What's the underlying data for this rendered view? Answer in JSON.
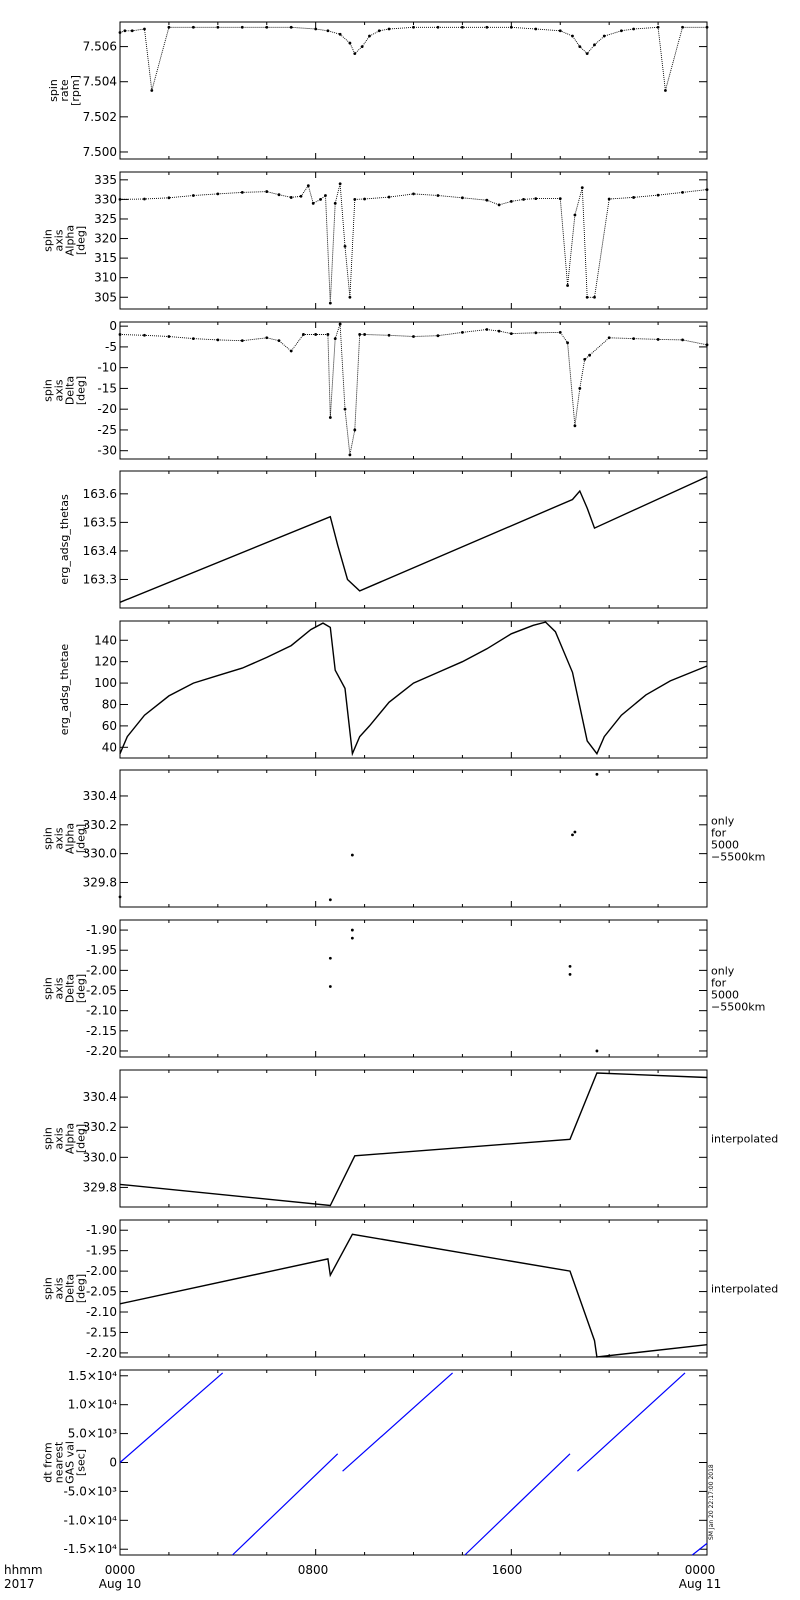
{
  "timeAxis": {
    "row1": [
      "hhmm",
      "0000",
      "0800",
      "1600",
      "0000"
    ],
    "row2": [
      "2017",
      "Aug 10",
      "Aug 11"
    ]
  },
  "sideNote": "SM Jan 20 22:17:00 2018",
  "chart_data": [
    {
      "type": "scatter",
      "ylabel": [
        "spin",
        "rate",
        "[rpm]"
      ],
      "right": [],
      "ylim": [
        7.4996,
        7.5074
      ],
      "yticks": [
        "7.500",
        "7.502",
        "7.504",
        "7.506"
      ],
      "ytickValues": [
        7.5,
        7.502,
        7.504,
        7.506
      ],
      "points": [
        [
          0,
          7.5068
        ],
        [
          0.2,
          7.5069
        ],
        [
          0.5,
          7.5069
        ],
        [
          1,
          7.507
        ],
        [
          1.3,
          7.5035
        ],
        [
          2,
          7.5071
        ],
        [
          3,
          7.5071
        ],
        [
          4,
          7.5071
        ],
        [
          5,
          7.5071
        ],
        [
          6,
          7.5071
        ],
        [
          7,
          7.5071
        ],
        [
          8,
          7.507
        ],
        [
          8.5,
          7.5069
        ],
        [
          9,
          7.5067
        ],
        [
          9.4,
          7.5062
        ],
        [
          9.6,
          7.5056
        ],
        [
          9.9,
          7.506
        ],
        [
          10.2,
          7.5066
        ],
        [
          10.6,
          7.5069
        ],
        [
          11,
          7.507
        ],
        [
          12,
          7.5071
        ],
        [
          13,
          7.5071
        ],
        [
          14,
          7.5071
        ],
        [
          15,
          7.5071
        ],
        [
          16,
          7.5071
        ],
        [
          17,
          7.507
        ],
        [
          18,
          7.5069
        ],
        [
          18.5,
          7.5066
        ],
        [
          18.8,
          7.506
        ],
        [
          19.1,
          7.5056
        ],
        [
          19.4,
          7.5061
        ],
        [
          19.8,
          7.5066
        ],
        [
          20.5,
          7.5069
        ],
        [
          21,
          7.507
        ],
        [
          22,
          7.5071
        ],
        [
          22.3,
          7.5035
        ],
        [
          23,
          7.5071
        ],
        [
          24,
          7.5071
        ]
      ]
    },
    {
      "type": "scatter",
      "ylabel": [
        "spin",
        "axis",
        "Alpha",
        "[deg]"
      ],
      "right": [],
      "ylim": [
        302,
        337
      ],
      "yticks": [
        "305",
        "310",
        "315",
        "320",
        "325",
        "330",
        "335"
      ],
      "ytickValues": [
        305,
        310,
        315,
        320,
        325,
        330,
        335
      ],
      "points": [
        [
          0,
          330
        ],
        [
          1,
          330.1
        ],
        [
          2,
          330.4
        ],
        [
          3,
          331.0
        ],
        [
          4,
          331.4
        ],
        [
          5,
          331.8
        ],
        [
          6,
          332.0
        ],
        [
          6.5,
          331.2
        ],
        [
          7,
          330.5
        ],
        [
          7.4,
          330.8
        ],
        [
          7.7,
          333.5
        ],
        [
          7.9,
          329.0
        ],
        [
          8.2,
          330
        ],
        [
          8.4,
          331
        ],
        [
          8.6,
          303.5
        ],
        [
          8.8,
          329
        ],
        [
          9.0,
          334
        ],
        [
          9.2,
          318
        ],
        [
          9.4,
          305
        ],
        [
          9.6,
          330
        ],
        [
          10,
          330.1
        ],
        [
          11,
          330.6
        ],
        [
          12,
          331.4
        ],
        [
          13,
          331.0
        ],
        [
          14,
          330.4
        ],
        [
          15,
          329.8
        ],
        [
          15.5,
          328.6
        ],
        [
          16,
          329.5
        ],
        [
          16.5,
          330.0
        ],
        [
          17,
          330.2
        ],
        [
          18,
          330.2
        ],
        [
          18.3,
          308
        ],
        [
          18.6,
          326
        ],
        [
          18.9,
          333
        ],
        [
          19.1,
          305
        ],
        [
          19.4,
          305
        ],
        [
          20,
          330.1
        ],
        [
          21,
          330.5
        ],
        [
          22,
          331.1
        ],
        [
          23,
          331.8
        ],
        [
          24,
          332.5
        ]
      ]
    },
    {
      "type": "scatter",
      "ylabel": [
        "spin",
        "axis",
        "Delta",
        "[deg]"
      ],
      "right": [],
      "ylim": [
        -32,
        1
      ],
      "yticks": [
        "0",
        "-5",
        "-10",
        "-15",
        "-20",
        "-25",
        "-30"
      ],
      "ytickValues": [
        0,
        -5,
        -10,
        -15,
        -20,
        -25,
        -30
      ],
      "points": [
        [
          0,
          -2
        ],
        [
          1,
          -2.2
        ],
        [
          2,
          -2.5
        ],
        [
          3,
          -3.0
        ],
        [
          4,
          -3.3
        ],
        [
          5,
          -3.5
        ],
        [
          6,
          -2.8
        ],
        [
          6.5,
          -3.5
        ],
        [
          7,
          -6
        ],
        [
          7.5,
          -2
        ],
        [
          8,
          -2
        ],
        [
          8.5,
          -2
        ],
        [
          8.6,
          -22
        ],
        [
          8.8,
          -3
        ],
        [
          9.0,
          0.5
        ],
        [
          9.2,
          -20
        ],
        [
          9.4,
          -31
        ],
        [
          9.6,
          -25
        ],
        [
          9.8,
          -2
        ],
        [
          10,
          -2
        ],
        [
          11,
          -2.2
        ],
        [
          12,
          -2.5
        ],
        [
          13,
          -2.3
        ],
        [
          14,
          -1.5
        ],
        [
          15,
          -0.8
        ],
        [
          15.5,
          -1.2
        ],
        [
          16,
          -1.8
        ],
        [
          17,
          -1.6
        ],
        [
          18,
          -1.5
        ],
        [
          18.3,
          -4
        ],
        [
          18.6,
          -24
        ],
        [
          18.8,
          -15
        ],
        [
          19.0,
          -8
        ],
        [
          19.2,
          -7
        ],
        [
          20,
          -2.8
        ],
        [
          21,
          -3.0
        ],
        [
          22,
          -3.2
        ],
        [
          23,
          -3.3
        ],
        [
          24,
          -4.5
        ]
      ]
    },
    {
      "type": "line",
      "ylabel": [
        "erg_adsg_thetas"
      ],
      "right": [],
      "ylim": [
        163.2,
        163.68
      ],
      "yticks": [
        "163.3",
        "163.4",
        "163.5",
        "163.6"
      ],
      "ytickValues": [
        163.3,
        163.4,
        163.5,
        163.6
      ],
      "points": [
        [
          0,
          163.22
        ],
        [
          8.6,
          163.52
        ],
        [
          8.9,
          163.42
        ],
        [
          9.3,
          163.3
        ],
        [
          9.8,
          163.26
        ],
        [
          18.5,
          163.58
        ],
        [
          18.8,
          163.61
        ],
        [
          19.1,
          163.55
        ],
        [
          19.4,
          163.48
        ],
        [
          24,
          163.66
        ]
      ]
    },
    {
      "type": "line",
      "ylabel": [
        "erg_adsg_thetae"
      ],
      "right": [],
      "ylim": [
        30,
        158
      ],
      "yticks": [
        "40",
        "60",
        "80",
        "100",
        "120",
        "140"
      ],
      "ytickValues": [
        40,
        60,
        80,
        100,
        120,
        140
      ],
      "points": [
        [
          0,
          34
        ],
        [
          0.3,
          50
        ],
        [
          1,
          70
        ],
        [
          2,
          88
        ],
        [
          3,
          100
        ],
        [
          4,
          107
        ],
        [
          5,
          114
        ],
        [
          6,
          124
        ],
        [
          7,
          135
        ],
        [
          7.8,
          150
        ],
        [
          8.3,
          156
        ],
        [
          8.6,
          152
        ],
        [
          8.8,
          112
        ],
        [
          9.2,
          95
        ],
        [
          9.5,
          34
        ],
        [
          9.8,
          50
        ],
        [
          10.2,
          60
        ],
        [
          11,
          82
        ],
        [
          12,
          100
        ],
        [
          13,
          110
        ],
        [
          14,
          120
        ],
        [
          15,
          132
        ],
        [
          16,
          146
        ],
        [
          16.9,
          154
        ],
        [
          17.4,
          157
        ],
        [
          17.8,
          148
        ],
        [
          18.5,
          110
        ],
        [
          19.1,
          46
        ],
        [
          19.5,
          34
        ],
        [
          19.8,
          50
        ],
        [
          20.5,
          70
        ],
        [
          21.5,
          89
        ],
        [
          22.5,
          102
        ],
        [
          24,
          116
        ]
      ]
    },
    {
      "type": "scatter",
      "ylabel": [
        "spin",
        "axis",
        "Alpha",
        "[deg]"
      ],
      "right": [
        "only",
        "for",
        "5000",
        "−5500km"
      ],
      "ylim": [
        329.63,
        330.58
      ],
      "yticks": [
        "329.8",
        "330.0",
        "330.2",
        "330.4"
      ],
      "ytickValues": [
        329.8,
        330.0,
        330.2,
        330.4
      ],
      "points": [
        [
          0,
          329.7
        ],
        [
          8.6,
          329.68
        ],
        [
          9.5,
          329.99
        ],
        [
          18.5,
          330.13
        ],
        [
          18.6,
          330.15
        ],
        [
          19.5,
          330.55
        ]
      ]
    },
    {
      "type": "scatter",
      "ylabel": [
        "spin",
        "axis",
        "Delta",
        "[deg]"
      ],
      "right": [
        "only",
        "for",
        "5000",
        "−5500km"
      ],
      "ylim": [
        -2.215,
        -1.875
      ],
      "yticks": [
        "-1.90",
        "-1.95",
        "-2.00",
        "-2.05",
        "-2.10",
        "-2.15",
        "-2.20"
      ],
      "ytickValues": [
        -1.9,
        -1.95,
        -2.0,
        -2.05,
        -2.1,
        -2.15,
        -2.2
      ],
      "points": [
        [
          8.6,
          -1.97
        ],
        [
          8.6,
          -2.04
        ],
        [
          9.5,
          -1.9
        ],
        [
          9.5,
          -1.92
        ],
        [
          18.4,
          -1.99
        ],
        [
          18.4,
          -2.01
        ],
        [
          19.5,
          -2.2
        ]
      ]
    },
    {
      "type": "line",
      "ylabel": [
        "spin",
        "axis",
        "Alpha",
        "[deg]"
      ],
      "right": [
        "interpolated"
      ],
      "ylim": [
        329.67,
        330.58
      ],
      "yticks": [
        "329.8",
        "330.0",
        "330.2",
        "330.4"
      ],
      "ytickValues": [
        329.8,
        330.0,
        330.2,
        330.4
      ],
      "points": [
        [
          0,
          329.82
        ],
        [
          8.6,
          329.68
        ],
        [
          9.6,
          330.01
        ],
        [
          18.4,
          330.12
        ],
        [
          19.5,
          330.56
        ],
        [
          24,
          330.53
        ]
      ]
    },
    {
      "type": "line",
      "ylabel": [
        "spin",
        "axis",
        "Delta",
        "[deg]"
      ],
      "right": [
        "interpolated"
      ],
      "ylim": [
        -2.21,
        -1.875
      ],
      "yticks": [
        "-1.90",
        "-1.95",
        "-2.00",
        "-2.05",
        "-2.10",
        "-2.15",
        "-2.20"
      ],
      "ytickValues": [
        -1.9,
        -1.95,
        -2.0,
        -2.05,
        -2.1,
        -2.15,
        -2.2
      ],
      "points": [
        [
          0,
          -2.08
        ],
        [
          8.5,
          -1.97
        ],
        [
          8.6,
          -2.01
        ],
        [
          9.5,
          -1.91
        ],
        [
          18.4,
          -2.0
        ],
        [
          19.4,
          -2.17
        ],
        [
          19.5,
          -2.21
        ],
        [
          24,
          -2.18
        ]
      ]
    },
    {
      "type": "line",
      "ylabel": [
        "dt from",
        "nearest",
        "GAS val",
        "[sec]"
      ],
      "right": [],
      "ylim": [
        -16000,
        16000
      ],
      "yticks": [
        "1.5×10⁴",
        "1.0×10⁴",
        "5.0×10³",
        "0",
        "-5.0×10³",
        "-1.0×10⁴",
        "-1.5×10⁴"
      ],
      "ytickValues": [
        15000,
        10000,
        5000,
        0,
        -5000,
        -10000,
        -15000
      ],
      "series_segments": [
        [
          [
            0,
            0
          ],
          [
            4.2,
            15500
          ]
        ],
        [
          [
            4.6,
            -16000
          ],
          [
            8.9,
            1500
          ]
        ],
        [
          [
            9.1,
            -1500
          ],
          [
            13.6,
            15500
          ]
        ],
        [
          [
            14.1,
            -16000
          ],
          [
            18.4,
            1500
          ]
        ],
        [
          [
            18.7,
            -1500
          ],
          [
            23.1,
            15500
          ]
        ],
        [
          [
            23.4,
            -16000
          ],
          [
            24,
            -14000
          ]
        ]
      ],
      "color": "#0000ff"
    }
  ]
}
